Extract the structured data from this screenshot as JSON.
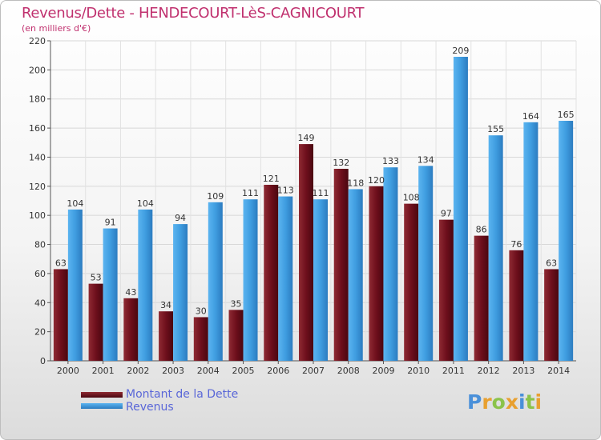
{
  "page": {
    "title": "Revenus/Dette - HENDECOURT-LèS-CAGNICOURT",
    "subtitle": "(en milliers d'€)"
  },
  "legend": {
    "items": [
      {
        "label": "Montant de la Dette",
        "color": "#7a1020"
      },
      {
        "label": "Revenus",
        "color": "#3f9de0"
      }
    ]
  },
  "logo": {
    "text": "Proxiti",
    "letter_colors": [
      "#4a90d9",
      "#e8a030",
      "#8bc34a",
      "#e8a030",
      "#4a90d9",
      "#8bc34a",
      "#e8a030"
    ]
  },
  "chart_data": {
    "type": "bar",
    "categories": [
      "2000",
      "2001",
      "2002",
      "2003",
      "2004",
      "2005",
      "2006",
      "2007",
      "2008",
      "2009",
      "2010",
      "2011",
      "2012",
      "2013",
      "2014"
    ],
    "series": [
      {
        "name": "Montant de la Dette",
        "values": [
          63,
          53,
          43,
          34,
          30,
          35,
          121,
          149,
          132,
          120,
          108,
          97,
          86,
          76,
          63
        ]
      },
      {
        "name": "Revenus",
        "values": [
          104,
          91,
          104,
          94,
          109,
          111,
          113,
          111,
          118,
          133,
          134,
          209,
          155,
          164,
          165
        ]
      }
    ],
    "title": "Revenus/Dette - HENDECOURT-LèS-CAGNICOURT",
    "subtitle": "(en milliers d'€)",
    "ylim": [
      0,
      220
    ],
    "yticks": [
      0,
      20,
      40,
      60,
      80,
      100,
      120,
      140,
      160,
      180,
      200,
      220
    ],
    "grid": true,
    "legend": "bottom-left",
    "data_labels": true
  }
}
